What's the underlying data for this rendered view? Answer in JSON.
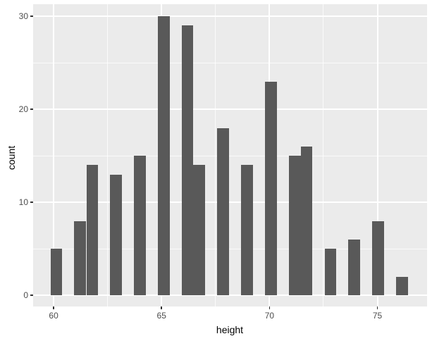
{
  "chart_data": {
    "type": "bar",
    "subtype": "histogram",
    "title": "",
    "xlabel": "height",
    "ylabel": "count",
    "x_major_ticks": [
      60,
      65,
      70,
      75
    ],
    "x_minor_ticks": [
      62.5,
      67.5,
      72.5
    ],
    "y_major_ticks": [
      0,
      10,
      20,
      30
    ],
    "y_minor_ticks": [
      5,
      15,
      25
    ],
    "xlim": [
      59.05,
      77.3
    ],
    "ylim": [
      -1.2,
      31.3
    ],
    "binwidth": 0.552,
    "bins": [
      {
        "x": 60.13,
        "count": 5
      },
      {
        "x": 61.23,
        "count": 8
      },
      {
        "x": 61.79,
        "count": 14
      },
      {
        "x": 62.89,
        "count": 13
      },
      {
        "x": 63.99,
        "count": 15
      },
      {
        "x": 65.1,
        "count": 30
      },
      {
        "x": 66.2,
        "count": 29
      },
      {
        "x": 66.75,
        "count": 14
      },
      {
        "x": 67.86,
        "count": 18
      },
      {
        "x": 68.96,
        "count": 14
      },
      {
        "x": 70.07,
        "count": 23
      },
      {
        "x": 71.17,
        "count": 15
      },
      {
        "x": 71.72,
        "count": 16
      },
      {
        "x": 72.83,
        "count": 5
      },
      {
        "x": 73.93,
        "count": 6
      },
      {
        "x": 75.03,
        "count": 8
      },
      {
        "x": 76.14,
        "count": 2
      }
    ],
    "legend": null,
    "grid": "on",
    "colors": {
      "bar_fill": "#595959",
      "panel_background": "#EBEBEB",
      "gridline": "#FFFFFF",
      "tick_label": "#4D4D4D",
      "axis_title": "#000000",
      "tick_mark": "#333333",
      "figure_background": "#FFFFFF"
    }
  }
}
